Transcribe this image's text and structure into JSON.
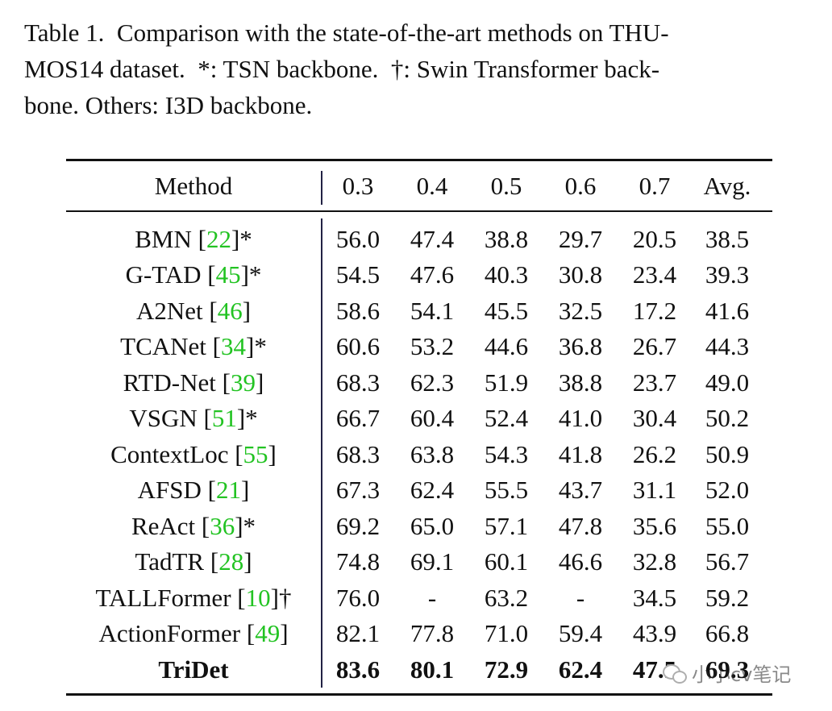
{
  "caption": "Table 1. Comparison with the state-of-the-art methods on THUMOS14 dataset. *: TSN backbone. †: Swin Transformer backbone. Others: I3D backbone.",
  "caption_lines": [
    "Table 1.  Comparison with the state-of-the-art methods on THU-",
    "MOS14 dataset.  *: TSN backbone.  †: Swin Transformer back-",
    "bone. Others: I3D backbone."
  ],
  "table": {
    "headers": [
      "Method",
      "0.3",
      "0.4",
      "0.5",
      "0.6",
      "0.7",
      "Avg."
    ],
    "rows": [
      {
        "name": "BMN",
        "ref": "22",
        "mark": "*",
        "values": [
          "56.0",
          "47.4",
          "38.8",
          "29.7",
          "20.5",
          "38.5"
        ]
      },
      {
        "name": "G-TAD",
        "ref": "45",
        "mark": "*",
        "values": [
          "54.5",
          "47.6",
          "40.3",
          "30.8",
          "23.4",
          "39.3"
        ]
      },
      {
        "name": "A2Net",
        "ref": "46",
        "mark": "",
        "values": [
          "58.6",
          "54.1",
          "45.5",
          "32.5",
          "17.2",
          "41.6"
        ]
      },
      {
        "name": "TCANet",
        "ref": "34",
        "mark": "*",
        "values": [
          "60.6",
          "53.2",
          "44.6",
          "36.8",
          "26.7",
          "44.3"
        ]
      },
      {
        "name": "RTD-Net",
        "ref": "39",
        "mark": "",
        "values": [
          "68.3",
          "62.3",
          "51.9",
          "38.8",
          "23.7",
          "49.0"
        ]
      },
      {
        "name": "VSGN",
        "ref": "51",
        "mark": "*",
        "values": [
          "66.7",
          "60.4",
          "52.4",
          "41.0",
          "30.4",
          "50.2"
        ]
      },
      {
        "name": "ContextLoc",
        "ref": "55",
        "mark": "",
        "values": [
          "68.3",
          "63.8",
          "54.3",
          "41.8",
          "26.2",
          "50.9"
        ]
      },
      {
        "name": "AFSD",
        "ref": "21",
        "mark": "",
        "values": [
          "67.3",
          "62.4",
          "55.5",
          "43.7",
          "31.1",
          "52.0"
        ]
      },
      {
        "name": "ReAct",
        "ref": "36",
        "mark": "*",
        "values": [
          "69.2",
          "65.0",
          "57.1",
          "47.8",
          "35.6",
          "55.0"
        ]
      },
      {
        "name": "TadTR",
        "ref": "28",
        "mark": "",
        "values": [
          "74.8",
          "69.1",
          "60.1",
          "46.6",
          "32.8",
          "56.7"
        ]
      },
      {
        "name": "TALLFormer",
        "ref": "10",
        "mark": "†",
        "values": [
          "76.0",
          "-",
          "63.2",
          "-",
          "34.5",
          "59.2"
        ]
      },
      {
        "name": "ActionFormer",
        "ref": "49",
        "mark": "",
        "values": [
          "82.1",
          "77.8",
          "71.0",
          "59.4",
          "43.9",
          "66.8"
        ]
      },
      {
        "name": "TriDet",
        "ref": "",
        "mark": "",
        "bold": true,
        "values": [
          "83.6",
          "80.1",
          "72.9",
          "62.4",
          "47.5",
          "69.3"
        ]
      }
    ]
  },
  "colors": {
    "ref_link": "#22c322",
    "text": "#111111"
  },
  "watermark": {
    "icon": "wechat-icon",
    "text": "小小cv笔记"
  }
}
